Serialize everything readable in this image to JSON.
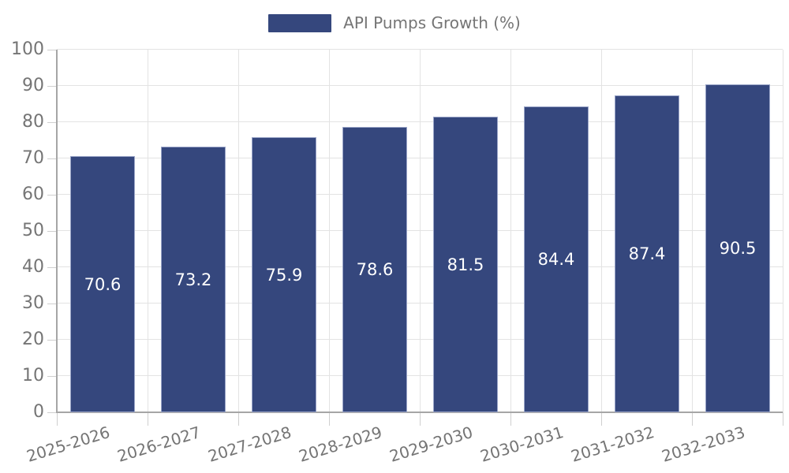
{
  "chart_data": {
    "type": "bar",
    "title": "",
    "legend": [
      "API Pumps Growth (%)"
    ],
    "legend_position": "top-center",
    "categories": [
      "2025-2026",
      "2026-2027",
      "2027-2028",
      "2028-2029",
      "2029-2030",
      "2030-2031",
      "2031-2032",
      "2032-2033"
    ],
    "series": [
      {
        "name": "API Pumps Growth (%)",
        "values": [
          70.6,
          73.2,
          75.9,
          78.6,
          81.5,
          84.4,
          87.4,
          90.5
        ]
      }
    ],
    "value_labels": [
      "70.6",
      "73.2",
      "75.9",
      "78.6",
      "81.5",
      "84.4",
      "87.4",
      "90.5"
    ],
    "xlabel": "",
    "ylabel": "",
    "ylim": [
      0,
      100
    ],
    "yticks": [
      0,
      10,
      20,
      30,
      40,
      50,
      60,
      70,
      80,
      90,
      100
    ],
    "ytick_labels": [
      "0",
      "10",
      "20",
      "30",
      "40",
      "50",
      "60",
      "70",
      "80",
      "90",
      "100"
    ],
    "grid": true,
    "colors": {
      "bar": "#35477D",
      "bar_edge": "#9aa5c8",
      "value_label": "#ffffff",
      "axis_text": "#757575",
      "grid_line": "#e3e3e3",
      "axis_line": "#a6a6a6"
    }
  }
}
